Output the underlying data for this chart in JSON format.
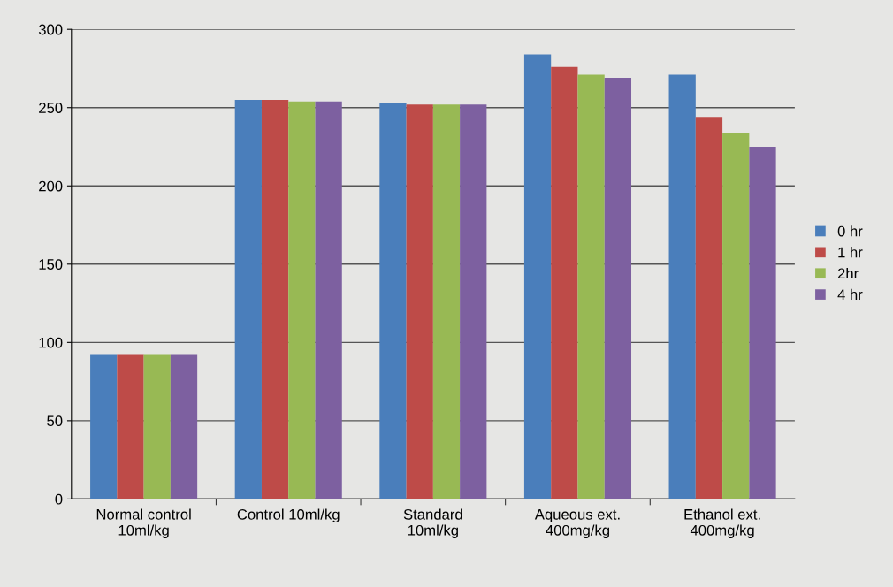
{
  "chart_data": {
    "type": "bar",
    "categories": [
      "Normal control\n10ml/kg",
      "Control 10ml/kg",
      "Standard\n10ml/kg",
      "Aqueous ext.\n400mg/kg",
      "Ethanol ext.\n400mg/kg"
    ],
    "series": [
      {
        "name": "0 hr",
        "color": "#4a7ebb",
        "values": [
          92,
          255,
          253,
          284,
          271
        ]
      },
      {
        "name": "1 hr",
        "color": "#be4b48",
        "values": [
          92,
          255,
          252,
          276,
          244
        ]
      },
      {
        "name": "2hr",
        "color": "#98b954",
        "values": [
          92,
          254,
          252,
          271,
          234
        ]
      },
      {
        "name": "4 hr",
        "color": "#7d60a0",
        "values": [
          92,
          254,
          252,
          269,
          225
        ]
      }
    ],
    "ylim": [
      0,
      300
    ],
    "yticks": [
      0,
      50,
      100,
      150,
      200,
      250,
      300
    ],
    "grid": "y",
    "legend": "right"
  }
}
